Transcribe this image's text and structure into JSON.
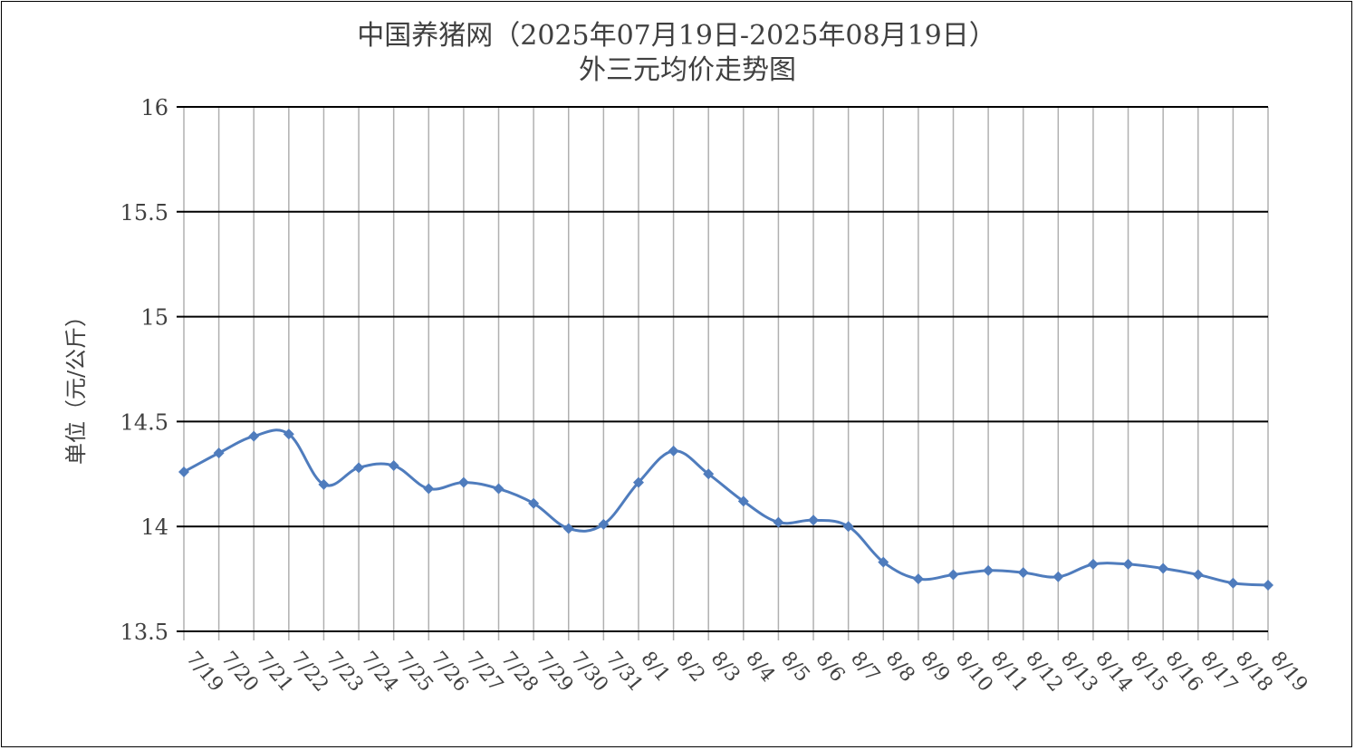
{
  "chart_data": {
    "type": "line",
    "title": "中国养猪网（2025年07月19日-2025年08月19日）",
    "subtitle": "外三元均价走势图",
    "ylabel": "单位（元/公斤）",
    "xlabel": "",
    "ylim": [
      13.5,
      16
    ],
    "y_ticks": [
      "13.5",
      "14",
      "14.5",
      "15",
      "15.5",
      "16"
    ],
    "y_tick_values": [
      13.5,
      14,
      14.5,
      15,
      15.5,
      16
    ],
    "grid": "horizontal and vertical",
    "legend": "none",
    "line_color": "#4F7CBD",
    "categories": [
      "7/19",
      "7/20",
      "7/21",
      "7/22",
      "7/23",
      "7/24",
      "7/25",
      "7/26",
      "7/27",
      "7/28",
      "7/29",
      "7/30",
      "7/31",
      "8/1",
      "8/2",
      "8/3",
      "8/4",
      "8/5",
      "8/6",
      "8/7",
      "8/8",
      "8/9",
      "8/10",
      "8/11",
      "8/12",
      "8/13",
      "8/14",
      "8/15",
      "8/16",
      "8/17",
      "8/18",
      "8/19"
    ],
    "series": [
      {
        "values": [
          14.26,
          14.35,
          14.43,
          14.44,
          14.2,
          14.28,
          14.29,
          14.18,
          14.21,
          14.18,
          14.11,
          13.99,
          14.01,
          14.21,
          14.36,
          14.25,
          14.12,
          14.02,
          14.03,
          14.0,
          13.83,
          13.75,
          13.77,
          13.79,
          13.78,
          13.76,
          13.82,
          13.82,
          13.8,
          13.77,
          13.73,
          13.72
        ]
      }
    ]
  }
}
